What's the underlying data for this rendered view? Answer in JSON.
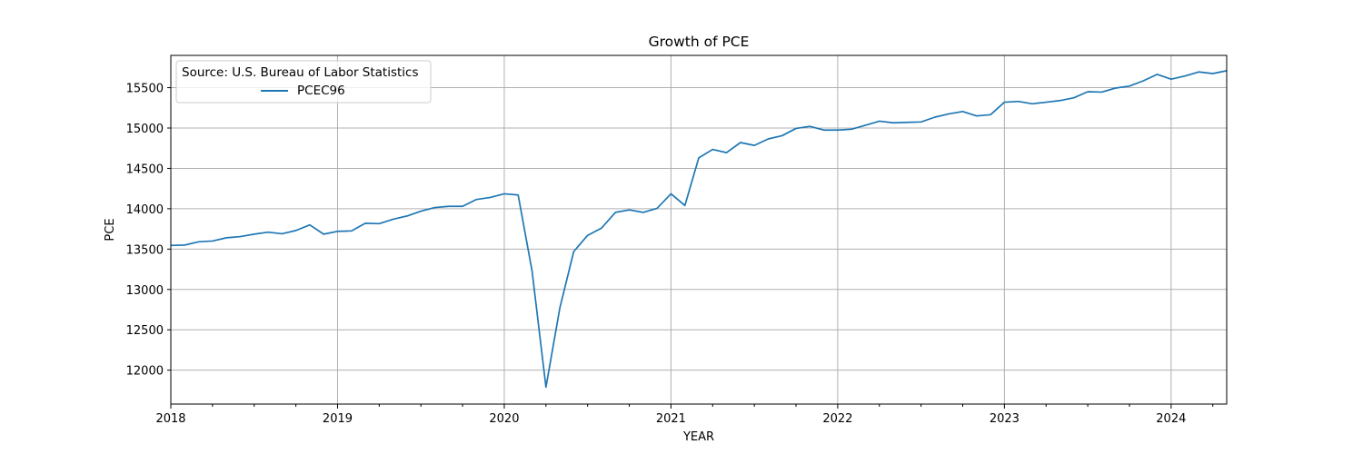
{
  "chart_data": {
    "type": "line",
    "title": "Growth of PCE",
    "xlabel": "YEAR",
    "ylabel": "PCE",
    "xlim": [
      "2018-01",
      "2024-05"
    ],
    "ylim": [
      11580,
      15900
    ],
    "x_ticks": [
      "2018",
      "2019",
      "2020",
      "2021",
      "2022",
      "2023",
      "2024"
    ],
    "y_ticks": [
      12000,
      12500,
      13000,
      13500,
      14000,
      14500,
      15000,
      15500
    ],
    "grid": true,
    "legend": {
      "title": "Source: U.S. Bureau of Labor Statistics",
      "placement": "top-left"
    },
    "colors": {
      "line": "#1f77b4",
      "grid": "#b0b0b0"
    },
    "x": [
      "2018-01",
      "2018-02",
      "2018-03",
      "2018-04",
      "2018-05",
      "2018-06",
      "2018-07",
      "2018-08",
      "2018-09",
      "2018-10",
      "2018-11",
      "2018-12",
      "2019-01",
      "2019-02",
      "2019-03",
      "2019-04",
      "2019-05",
      "2019-06",
      "2019-07",
      "2019-08",
      "2019-09",
      "2019-10",
      "2019-11",
      "2019-12",
      "2020-01",
      "2020-02",
      "2020-03",
      "2020-04",
      "2020-05",
      "2020-06",
      "2020-07",
      "2020-08",
      "2020-09",
      "2020-10",
      "2020-11",
      "2020-12",
      "2021-01",
      "2021-02",
      "2021-03",
      "2021-04",
      "2021-05",
      "2021-06",
      "2021-07",
      "2021-08",
      "2021-09",
      "2021-10",
      "2021-11",
      "2021-12",
      "2022-01",
      "2022-02",
      "2022-03",
      "2022-04",
      "2022-05",
      "2022-06",
      "2022-07",
      "2022-08",
      "2022-09",
      "2022-10",
      "2022-11",
      "2022-12",
      "2023-01",
      "2023-02",
      "2023-03",
      "2023-04",
      "2023-05",
      "2023-06",
      "2023-07",
      "2023-08",
      "2023-09",
      "2023-10",
      "2023-11",
      "2023-12",
      "2024-01",
      "2024-02",
      "2024-03",
      "2024-04",
      "2024-05"
    ],
    "series": [
      {
        "name": "PCEC96",
        "values": [
          13545,
          13550,
          13590,
          13600,
          13640,
          13655,
          13685,
          13710,
          13690,
          13730,
          13800,
          13685,
          13720,
          13725,
          13820,
          13815,
          13870,
          13910,
          13970,
          14015,
          14030,
          14030,
          14115,
          14140,
          14185,
          14170,
          13230,
          11790,
          12770,
          13470,
          13670,
          13760,
          13955,
          13985,
          13955,
          14005,
          14185,
          14040,
          14630,
          14735,
          14695,
          14820,
          14785,
          14865,
          14905,
          14995,
          15020,
          14975,
          14975,
          14985,
          15035,
          15085,
          15065,
          15070,
          15075,
          15135,
          15175,
          15205,
          15150,
          15165,
          15320,
          15330,
          15300,
          15320,
          15340,
          15375,
          15450,
          15445,
          15495,
          15520,
          15585,
          15665,
          15605,
          15645,
          15695,
          15675,
          15710
        ]
      }
    ]
  }
}
